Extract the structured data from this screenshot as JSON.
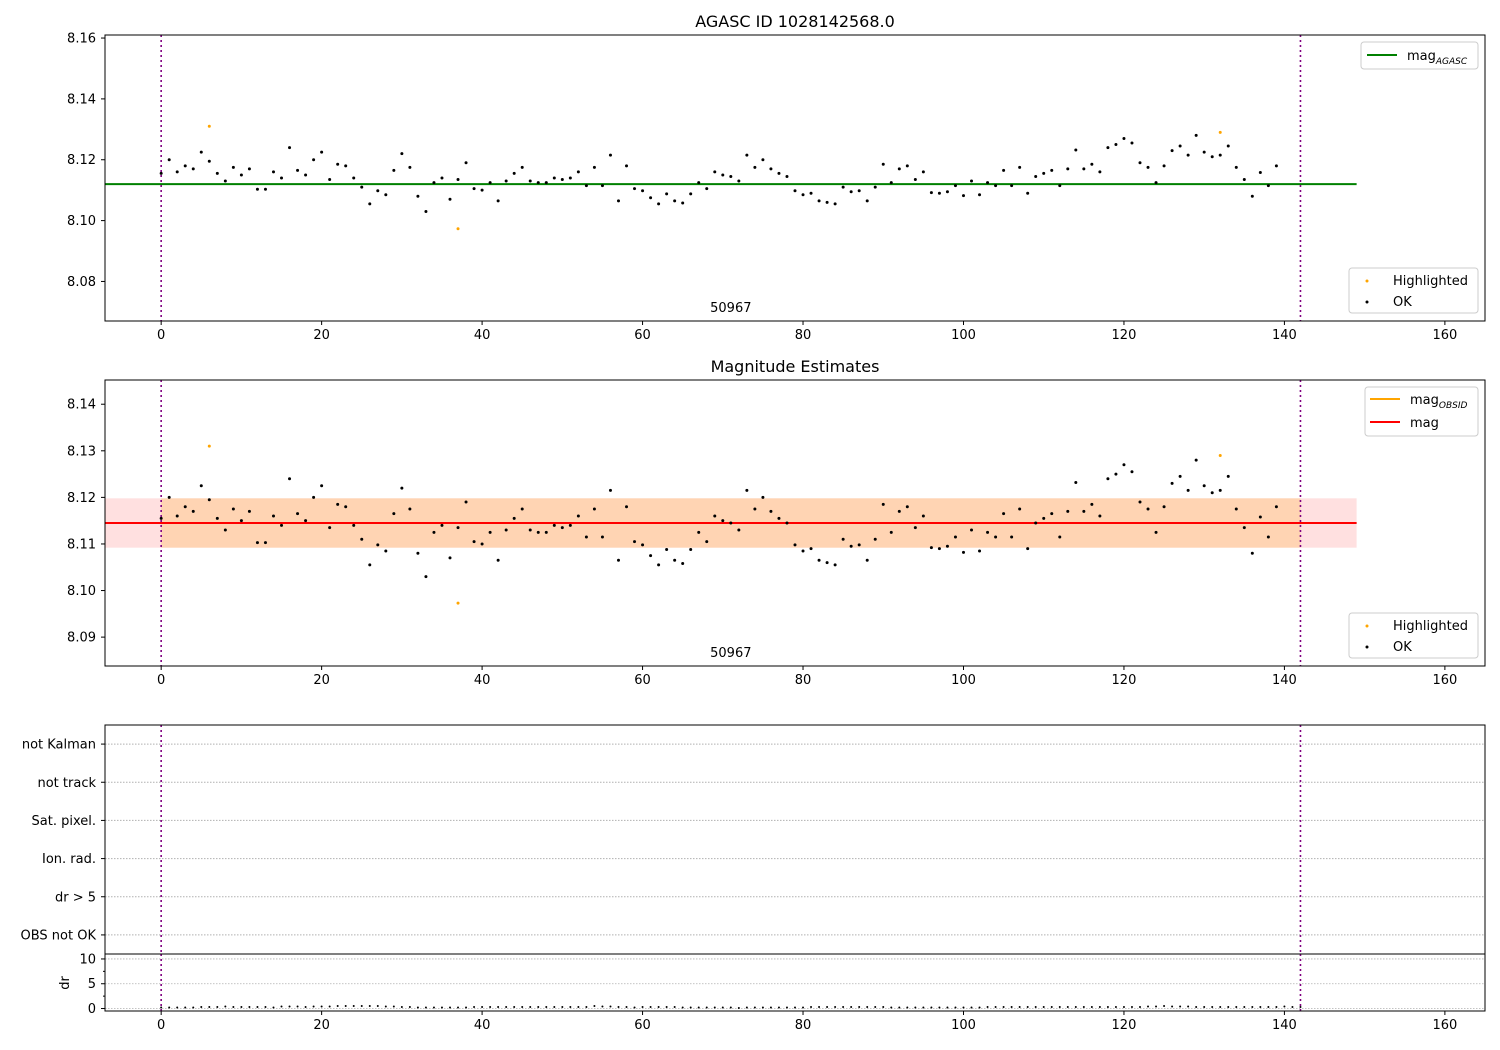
{
  "figure": {
    "width": 1500,
    "height": 1050
  },
  "chart_data": [
    {
      "panel": "agasc",
      "type": "scatter",
      "title": "AGASC ID 1028142568.0",
      "xlabel": "",
      "ylabel": "",
      "xlim": [
        -7,
        165
      ],
      "ylim": [
        8.067,
        8.161
      ],
      "xticks": [
        0,
        20,
        40,
        60,
        80,
        100,
        120,
        140,
        160
      ],
      "yticks": [
        8.08,
        8.1,
        8.12,
        8.14,
        8.16
      ],
      "ytick_labels": [
        "8.08",
        "8.10",
        "8.12",
        "8.14",
        "8.16"
      ],
      "annotation": {
        "text": "50967",
        "x": 71
      },
      "vlines": [
        0,
        142
      ],
      "lines": [
        {
          "name": "mag_AGASC",
          "y": 8.112,
          "x": [
            -7,
            149
          ],
          "color": "#008000"
        }
      ],
      "legend_lines": {
        "placement": "upper right",
        "entries": [
          {
            "label": "mag",
            "sub": "AGASC",
            "color": "#008000"
          }
        ]
      },
      "legend_points": {
        "placement": "lower right",
        "entries": [
          {
            "label": "Highlighted",
            "color": "#ffa500"
          },
          {
            "label": "OK",
            "color": "#000000"
          }
        ]
      },
      "highlighted": [
        [
          6,
          8.131
        ],
        [
          37,
          8.0973
        ],
        [
          132,
          8.129
        ]
      ],
      "ok_values": [
        8.1155,
        8.12,
        8.116,
        8.118,
        8.117,
        8.1225,
        8.1195,
        8.1155,
        8.113,
        8.1175,
        8.115,
        8.117,
        8.1103,
        8.1103,
        8.116,
        8.114,
        8.124,
        8.1165,
        8.115,
        8.12,
        8.1225,
        8.1135,
        8.1185,
        8.118,
        8.114,
        8.111,
        8.1055,
        8.1098,
        8.1085,
        8.1165,
        8.122,
        8.1175,
        8.108,
        8.103,
        8.1125,
        8.114,
        8.107,
        8.1135,
        8.119,
        8.1105,
        8.11,
        8.1125,
        8.1065,
        8.113,
        8.1155,
        8.1175,
        8.113,
        8.1125,
        8.1125,
        8.114,
        8.1135,
        8.114,
        8.116,
        8.1115,
        8.1175,
        8.1115,
        8.1215,
        8.1065,
        8.118,
        8.1105,
        8.1098,
        8.1075,
        8.1055,
        8.1088,
        8.1065,
        8.1058,
        8.1088,
        8.1125,
        8.1105,
        8.116,
        8.115,
        8.1145,
        8.113,
        8.1215,
        8.1175,
        8.12,
        8.117,
        8.1155,
        8.1145,
        8.1098,
        8.1085,
        8.109,
        8.1065,
        8.106,
        8.1055,
        8.111,
        8.1095,
        8.1098,
        8.1065,
        8.111,
        8.1185,
        8.1125,
        8.117,
        8.118,
        8.1135,
        8.116,
        8.1092,
        8.109,
        8.1095,
        8.1115,
        8.1082,
        8.113,
        8.1085,
        8.1125,
        8.1115,
        8.1165,
        8.1115,
        8.1175,
        8.109,
        8.1145,
        8.1155,
        8.1165,
        8.1115,
        8.117,
        8.1232,
        8.117,
        8.1185,
        8.116,
        8.124,
        8.125,
        8.127,
        8.1255,
        8.119,
        8.1175,
        8.1125,
        8.118,
        8.123,
        8.1245,
        8.1215,
        8.128,
        8.1225,
        8.121,
        8.1215,
        8.1245,
        8.1175,
        8.1135,
        8.108,
        8.1158,
        8.1115,
        8.118
      ]
    },
    {
      "panel": "magnitude",
      "type": "scatter",
      "title": "Magnitude Estimates",
      "xlabel": "",
      "ylabel": "",
      "xlim": [
        -7,
        165
      ],
      "ylim": [
        8.0838,
        8.1452
      ],
      "xticks": [
        0,
        20,
        40,
        60,
        80,
        100,
        120,
        140,
        160
      ],
      "yticks": [
        8.09,
        8.1,
        8.11,
        8.12,
        8.13,
        8.14
      ],
      "ytick_labels": [
        "8.09",
        "8.10",
        "8.11",
        "8.12",
        "8.13",
        "8.14"
      ],
      "annotation": {
        "text": "50967",
        "x": 71
      },
      "vlines": [
        0,
        142
      ],
      "mag_line": {
        "y": 8.1145,
        "color": "#ff0000"
      },
      "mag_band": {
        "y0": 8.1092,
        "y1": 8.1198,
        "x": [
          -7,
          149
        ]
      },
      "obsid_band": {
        "y0": 8.1092,
        "y1": 8.1198,
        "x": [
          0,
          142
        ]
      },
      "legend_lines": {
        "placement": "upper right",
        "entries": [
          {
            "label": "mag",
            "sub": "OBSID",
            "color": "#ffa500"
          },
          {
            "label": "mag",
            "sub": "",
            "color": "#ff0000"
          }
        ]
      },
      "legend_points": {
        "placement": "lower right",
        "entries": [
          {
            "label": "Highlighted",
            "color": "#ffa500"
          },
          {
            "label": "OK",
            "color": "#000000"
          }
        ]
      }
    },
    {
      "panel": "flags",
      "type": "scatter",
      "title": "",
      "xlim": [
        -7,
        165
      ],
      "ylim": [
        -0.5,
        5.5
      ],
      "categories": [
        "OBS not OK",
        "dr > 5",
        "Ion. rad.",
        "Sat. pixel.",
        "not track",
        "not Kalman"
      ],
      "vlines": [
        0,
        142
      ]
    },
    {
      "panel": "dr",
      "type": "scatter",
      "title": "",
      "xlabel": "",
      "ylabel": "dr",
      "xlim": [
        -7,
        165
      ],
      "ylim": [
        -0.5,
        11
      ],
      "xticks": [
        0,
        20,
        40,
        60,
        80,
        100,
        120,
        140,
        160
      ],
      "yticks": [
        0,
        5,
        10
      ],
      "ytick_labels": [
        "0",
        "5",
        "10"
      ],
      "vlines": [
        0,
        142
      ],
      "dr_values": [
        0.2,
        0.2,
        0.2,
        0.2,
        0.2,
        0.3,
        0.3,
        0.3,
        0.4,
        0.3,
        0.3,
        0.3,
        0.3,
        0.3,
        0.2,
        0.4,
        0.4,
        0.4,
        0.3,
        0.4,
        0.4,
        0.4,
        0.5,
        0.5,
        0.5,
        0.5,
        0.5,
        0.5,
        0.4,
        0.4,
        0.3,
        0.3,
        0.2,
        0.2,
        0.2,
        0.2,
        0.2,
        0.2,
        0.2,
        0.3,
        0.3,
        0.3,
        0.3,
        0.3,
        0.3,
        0.3,
        0.3,
        0.3,
        0.3,
        0.3,
        0.3,
        0.3,
        0.3,
        0.3,
        0.5,
        0.4,
        0.4,
        0.3,
        0.3,
        0.2,
        0.3,
        0.3,
        0.3,
        0.3,
        0.3,
        0.2,
        0.2,
        0.2,
        0.2,
        0.2,
        0.2,
        0.2,
        0.1,
        0.2,
        0.2,
        0.2,
        0.2,
        0.2,
        0.2,
        0.2,
        0.2,
        0.3,
        0.3,
        0.3,
        0.3,
        0.3,
        0.3,
        0.3,
        0.3,
        0.3,
        0.3,
        0.2,
        0.2,
        0.2,
        0.2,
        0.2,
        0.2,
        0.2,
        0.2,
        0.2,
        0.2,
        0.2,
        0.2,
        0.3,
        0.3,
        0.3,
        0.3,
        0.3,
        0.3,
        0.3,
        0.3,
        0.3,
        0.3,
        0.3,
        0.3,
        0.3,
        0.3,
        0.3,
        0.3,
        0.3,
        0.3,
        0.3,
        0.3,
        0.4,
        0.4,
        0.5,
        0.4,
        0.4,
        0.4,
        0.3,
        0.3,
        0.3,
        0.3,
        0.3,
        0.3,
        0.3,
        0.3,
        0.3,
        0.3,
        0.3,
        0.4,
        0.3,
        0.3
      ]
    }
  ]
}
